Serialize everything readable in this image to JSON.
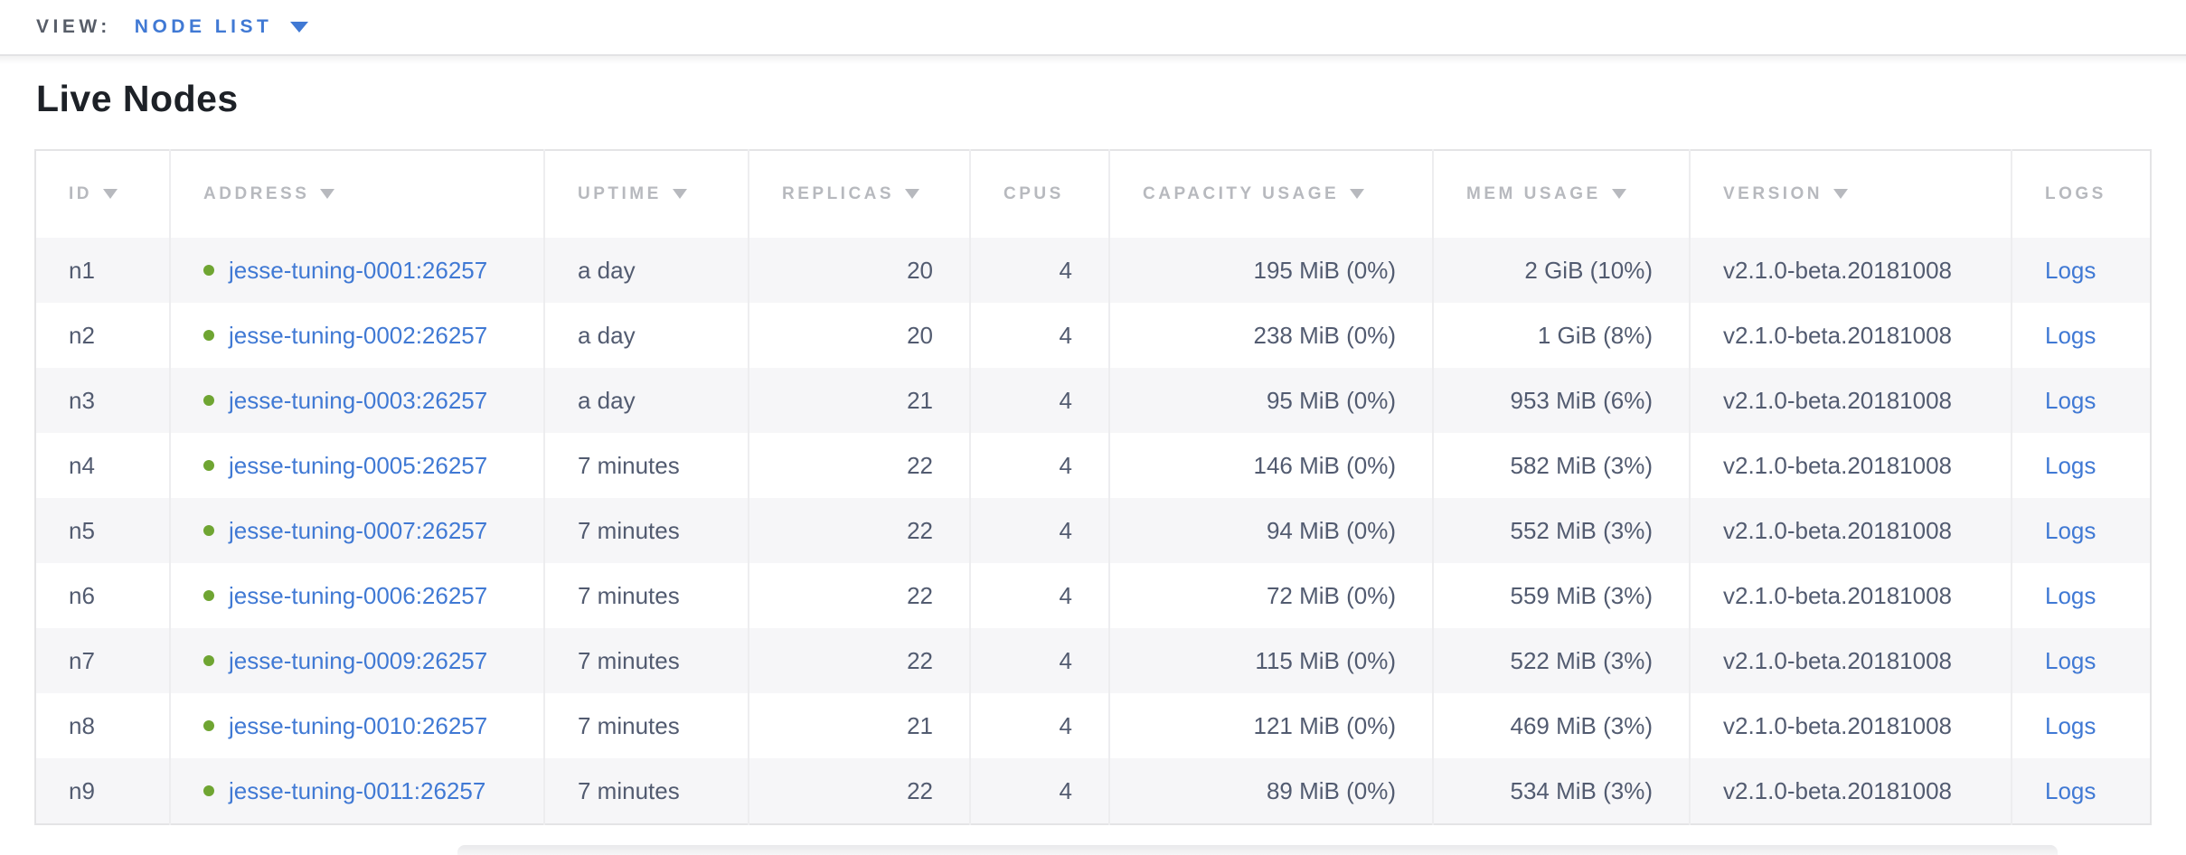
{
  "view_bar": {
    "label": "VIEW:",
    "selected_view": "NODE LIST"
  },
  "page": {
    "title": "Live Nodes"
  },
  "nodes_table": {
    "columns": [
      {
        "key": "id",
        "label": "ID",
        "sorted": true,
        "align": "left"
      },
      {
        "key": "address",
        "label": "ADDRESS",
        "sorted": true,
        "align": "left"
      },
      {
        "key": "uptime",
        "label": "UPTIME",
        "sorted": true,
        "align": "left"
      },
      {
        "key": "replicas",
        "label": "REPLICAS",
        "sorted": true,
        "align": "right"
      },
      {
        "key": "cpus",
        "label": "CPUS",
        "sorted": false,
        "align": "right"
      },
      {
        "key": "capacity_usage",
        "label": "CAPACITY USAGE",
        "sorted": true,
        "align": "right"
      },
      {
        "key": "mem_usage",
        "label": "MEM USAGE",
        "sorted": true,
        "align": "right"
      },
      {
        "key": "version",
        "label": "VERSION",
        "sorted": true,
        "align": "left"
      },
      {
        "key": "logs",
        "label": "LOGS",
        "sorted": false,
        "align": "left"
      }
    ],
    "rows": [
      {
        "id": "n1",
        "status": "live",
        "address": "jesse-tuning-0001:26257",
        "uptime": "a day",
        "replicas": "20",
        "cpus": "4",
        "capacity_usage": "195 MiB (0%)",
        "mem_usage": "2 GiB (10%)",
        "version": "v2.1.0-beta.20181008",
        "logs": "Logs"
      },
      {
        "id": "n2",
        "status": "live",
        "address": "jesse-tuning-0002:26257",
        "uptime": "a day",
        "replicas": "20",
        "cpus": "4",
        "capacity_usage": "238 MiB (0%)",
        "mem_usage": "1 GiB (8%)",
        "version": "v2.1.0-beta.20181008",
        "logs": "Logs"
      },
      {
        "id": "n3",
        "status": "live",
        "address": "jesse-tuning-0003:26257",
        "uptime": "a day",
        "replicas": "21",
        "cpus": "4",
        "capacity_usage": "95 MiB (0%)",
        "mem_usage": "953 MiB (6%)",
        "version": "v2.1.0-beta.20181008",
        "logs": "Logs"
      },
      {
        "id": "n4",
        "status": "live",
        "address": "jesse-tuning-0005:26257",
        "uptime": "7 minutes",
        "replicas": "22",
        "cpus": "4",
        "capacity_usage": "146 MiB (0%)",
        "mem_usage": "582 MiB (3%)",
        "version": "v2.1.0-beta.20181008",
        "logs": "Logs"
      },
      {
        "id": "n5",
        "status": "live",
        "address": "jesse-tuning-0007:26257",
        "uptime": "7 minutes",
        "replicas": "22",
        "cpus": "4",
        "capacity_usage": "94 MiB (0%)",
        "mem_usage": "552 MiB (3%)",
        "version": "v2.1.0-beta.20181008",
        "logs": "Logs"
      },
      {
        "id": "n6",
        "status": "live",
        "address": "jesse-tuning-0006:26257",
        "uptime": "7 minutes",
        "replicas": "22",
        "cpus": "4",
        "capacity_usage": "72 MiB (0%)",
        "mem_usage": "559 MiB (3%)",
        "version": "v2.1.0-beta.20181008",
        "logs": "Logs"
      },
      {
        "id": "n7",
        "status": "live",
        "address": "jesse-tuning-0009:26257",
        "uptime": "7 minutes",
        "replicas": "22",
        "cpus": "4",
        "capacity_usage": "115 MiB (0%)",
        "mem_usage": "522 MiB (3%)",
        "version": "v2.1.0-beta.20181008",
        "logs": "Logs"
      },
      {
        "id": "n8",
        "status": "live",
        "address": "jesse-tuning-0010:26257",
        "uptime": "7 minutes",
        "replicas": "21",
        "cpus": "4",
        "capacity_usage": "121 MiB (0%)",
        "mem_usage": "469 MiB (3%)",
        "version": "v2.1.0-beta.20181008",
        "logs": "Logs"
      },
      {
        "id": "n9",
        "status": "live",
        "address": "jesse-tuning-0011:26257",
        "uptime": "7 minutes",
        "replicas": "22",
        "cpus": "4",
        "capacity_usage": "89 MiB (0%)",
        "mem_usage": "534 MiB (3%)",
        "version": "v2.1.0-beta.20181008",
        "logs": "Logs"
      }
    ]
  },
  "colors": {
    "link_blue": "#4079d4",
    "status_live_green": "#6fa532",
    "header_gray": "#b7b9be",
    "cell_text": "#525b70",
    "title_black": "#1d2127",
    "view_label_gray": "#575d68"
  },
  "icons": {
    "dropdown": "chevron-down-icon",
    "sort": "sort-desc-icon",
    "node_status": "node-live-status-icon"
  }
}
